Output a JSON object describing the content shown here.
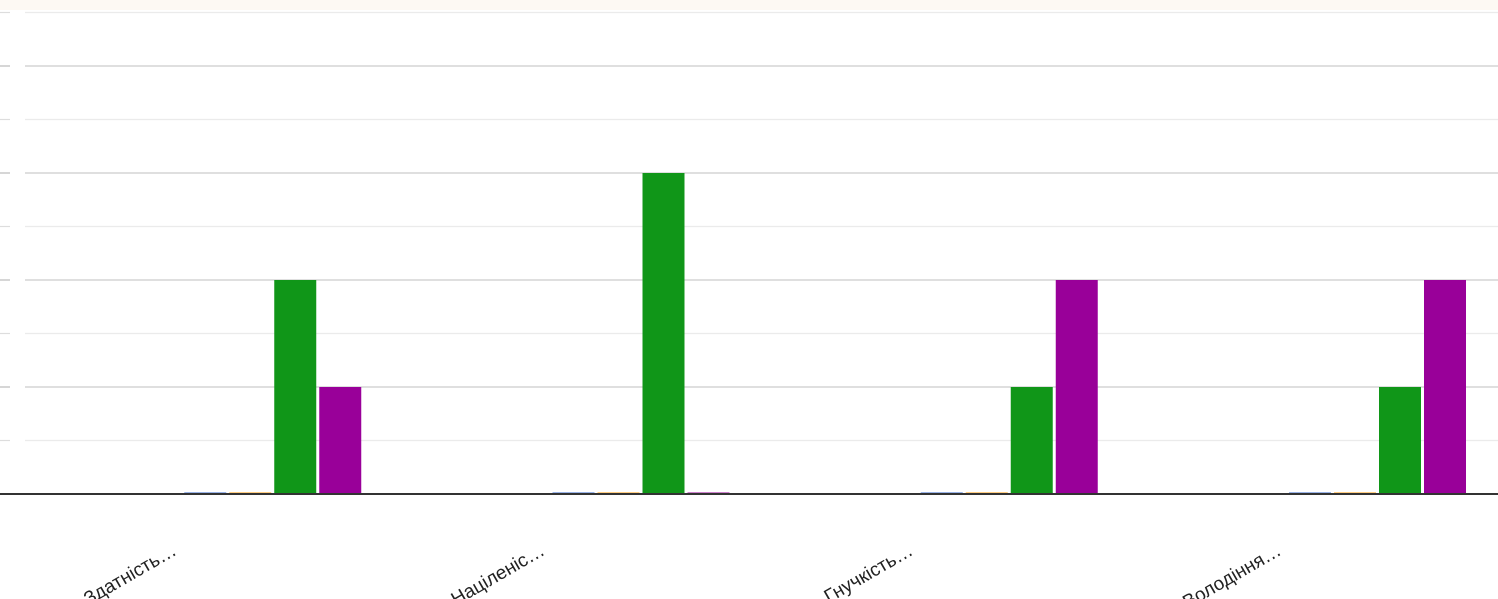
{
  "chart_data": {
    "type": "bar",
    "categories": [
      "Здатність…",
      "Націленіс…",
      "Гнучкість…",
      "Володіння…"
    ],
    "series": [
      {
        "color": "#3366cc",
        "values": [
          0,
          0,
          0,
          0
        ]
      },
      {
        "color": "#ff9900",
        "values": [
          0,
          0,
          0,
          0
        ]
      },
      {
        "color": "#109618",
        "values": [
          2,
          3,
          1,
          1
        ]
      },
      {
        "color": "#990099",
        "values": [
          1,
          0,
          2,
          2
        ]
      }
    ],
    "ylim": [
      0,
      4
    ],
    "grid": true,
    "legend": "none"
  }
}
